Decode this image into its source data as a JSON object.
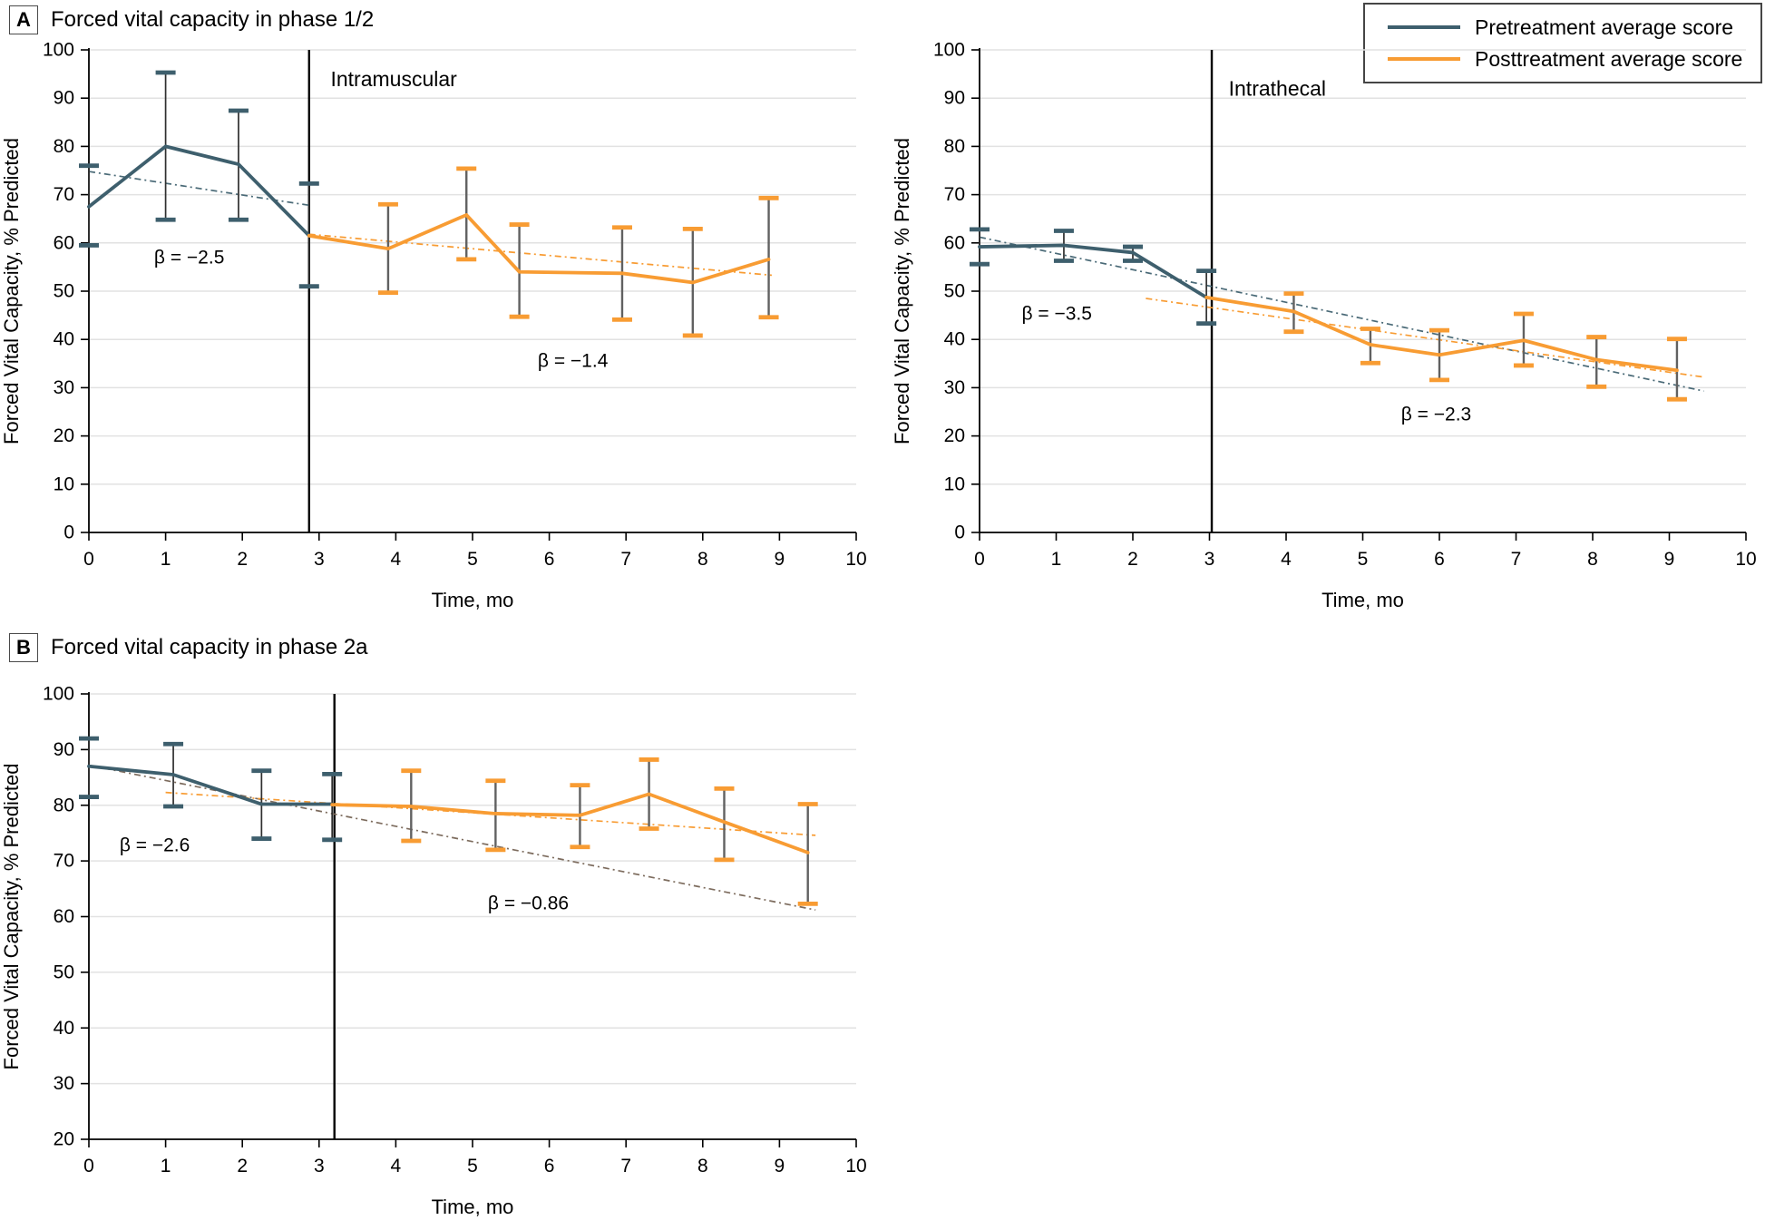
{
  "panels": [
    {
      "letter": "A",
      "title": "Forced vital capacity in phase 1/2"
    },
    {
      "letter": "B",
      "title": "Forced vital capacity in phase 2a"
    }
  ],
  "legend": {
    "items": [
      {
        "label": "Pretreatment average score",
        "color": "#3e5f6d"
      },
      {
        "label": "Posttreatment average score",
        "color": "#f89c33"
      }
    ]
  },
  "colors": {
    "pretreatment": "#3e5f6d",
    "posttreatment": "#f89c33",
    "pre_stem": "#2f2f2f",
    "post_stem": "#616161",
    "grid": "#e2e2e2",
    "axis": "#000000",
    "divider": "#000000"
  },
  "chart_data": [
    {
      "type": "line",
      "region_label": "Intramuscular",
      "region_label_pos": {
        "x": 3.15,
        "y": 94
      },
      "xlabel": "Time, mo",
      "ylabel": "Forced Vital Capacity, % Predicted",
      "xlim": [
        0,
        10
      ],
      "ylim": [
        0,
        100
      ],
      "xticks": [
        0,
        1,
        2,
        3,
        4,
        5,
        6,
        7,
        8,
        9,
        10
      ],
      "yticks": [
        0,
        10,
        20,
        30,
        40,
        50,
        60,
        70,
        80,
        90,
        100
      ],
      "grid": "horizontal",
      "divider_x": 2.87,
      "beta_labels": [
        {
          "text": "β = −2.5",
          "x": 0.85,
          "y": 57
        },
        {
          "text": "β = −1.4",
          "x": 5.85,
          "y": 35.5
        }
      ],
      "series": [
        {
          "name": "Pretreatment average score",
          "color": "#3e5f6d",
          "stem_color": "#2f2f2f",
          "points": [
            {
              "x": 0,
              "y": 67.5,
              "lo": 59.5,
              "hi": 76
            },
            {
              "x": 1,
              "y": 80,
              "lo": 64.8,
              "hi": 95.3
            },
            {
              "x": 1.95,
              "y": 76.3,
              "lo": 64.8,
              "hi": 87.4
            },
            {
              "x": 2.87,
              "y": 61.5,
              "lo": 51,
              "hi": 72.3
            }
          ]
        },
        {
          "name": "Posttreatment average score",
          "color": "#f89c33",
          "stem_color": "#616161",
          "points": [
            {
              "x": 2.87,
              "y": 61.5,
              "lo": null,
              "hi": null
            },
            {
              "x": 3.9,
              "y": 58.8,
              "lo": 49.7,
              "hi": 68
            },
            {
              "x": 4.92,
              "y": 65.8,
              "lo": 56.6,
              "hi": 75.4
            },
            {
              "x": 5.61,
              "y": 54,
              "lo": 44.7,
              "hi": 63.8
            },
            {
              "x": 6.95,
              "y": 53.7,
              "lo": 44.1,
              "hi": 63.2
            },
            {
              "x": 7.87,
              "y": 51.8,
              "lo": 40.8,
              "hi": 62.9
            },
            {
              "x": 8.86,
              "y": 56.6,
              "lo": 44.6,
              "hi": 69.3
            }
          ]
        }
      ],
      "trendlines": [
        {
          "name": "pretreatment-trend",
          "color": "#4a6a77",
          "x1": 0,
          "y1": 74.8,
          "x2": 2.87,
          "y2": 67.8
        },
        {
          "name": "posttreatment-trend",
          "color": "#f89c33",
          "x1": 2.87,
          "y1": 61.8,
          "x2": 8.9,
          "y2": 53.3
        }
      ]
    },
    {
      "type": "line",
      "region_label": "Intrathecal",
      "region_label_pos": {
        "x": 3.25,
        "y": 92
      },
      "xlabel": "Time, mo",
      "ylabel": "Forced Vital Capacity, % Predicted",
      "xlim": [
        0,
        10
      ],
      "ylim": [
        0,
        100
      ],
      "xticks": [
        0,
        1,
        2,
        3,
        4,
        5,
        6,
        7,
        8,
        9,
        10
      ],
      "yticks": [
        0,
        10,
        20,
        30,
        40,
        50,
        60,
        70,
        80,
        90,
        100
      ],
      "grid": "horizontal",
      "divider_x": 3.03,
      "beta_labels": [
        {
          "text": "β = −3.5",
          "x": 0.55,
          "y": 45.3
        },
        {
          "text": "β = −2.3",
          "x": 5.5,
          "y": 24.4
        }
      ],
      "series": [
        {
          "name": "Pretreatment average score",
          "color": "#3e5f6d",
          "stem_color": "#2f2f2f",
          "points": [
            {
              "x": 0,
              "y": 59.2,
              "lo": 55.6,
              "hi": 62.8
            },
            {
              "x": 1.1,
              "y": 59.5,
              "lo": 56.3,
              "hi": 62.5
            },
            {
              "x": 2,
              "y": 58,
              "lo": 56.3,
              "hi": 59.2
            },
            {
              "x": 2.96,
              "y": 48.7,
              "lo": 43.3,
              "hi": 54.2
            }
          ]
        },
        {
          "name": "Posttreatment average score",
          "color": "#f89c33",
          "stem_color": "#616161",
          "points": [
            {
              "x": 2.96,
              "y": 48.7,
              "lo": null,
              "hi": null
            },
            {
              "x": 4.1,
              "y": 45.8,
              "lo": 41.6,
              "hi": 49.5
            },
            {
              "x": 5.1,
              "y": 38.9,
              "lo": 35.1,
              "hi": 42.2
            },
            {
              "x": 6,
              "y": 36.8,
              "lo": 31.6,
              "hi": 41.9
            },
            {
              "x": 7.1,
              "y": 39.8,
              "lo": 34.6,
              "hi": 45.3
            },
            {
              "x": 8.05,
              "y": 35.8,
              "lo": 30.2,
              "hi": 40.5
            },
            {
              "x": 9.1,
              "y": 33.6,
              "lo": 27.6,
              "hi": 40.1
            }
          ]
        }
      ],
      "trendlines": [
        {
          "name": "pretreatment-trend",
          "color": "#4a6a77",
          "x1": 0,
          "y1": 61.2,
          "x2": 9.45,
          "y2": 29.3
        },
        {
          "name": "posttreatment-trend",
          "color": "#f89c33",
          "x1": 2.17,
          "y1": 48.5,
          "x2": 9.45,
          "y2": 32.2
        }
      ]
    },
    {
      "type": "line",
      "region_label": "",
      "region_label_pos": null,
      "xlabel": "Time, mo",
      "ylabel": "Forced Vital Capacity, % Predicted",
      "xlim": [
        0,
        10
      ],
      "ylim": [
        20,
        100
      ],
      "xticks": [
        0,
        1,
        2,
        3,
        4,
        5,
        6,
        7,
        8,
        9,
        10
      ],
      "yticks": [
        20,
        30,
        40,
        50,
        60,
        70,
        80,
        90,
        100
      ],
      "grid": "horizontal",
      "divider_x": 3.2,
      "beta_labels": [
        {
          "text": "β = −2.6",
          "x": 0.4,
          "y": 72.8
        },
        {
          "text": "β = −0.86",
          "x": 5.2,
          "y": 62.4
        }
      ],
      "series": [
        {
          "name": "Pretreatment average score",
          "color": "#3e5f6d",
          "stem_color": "#2f2f2f",
          "points": [
            {
              "x": 0,
              "y": 87,
              "lo": 81.5,
              "hi": 92
            },
            {
              "x": 1.1,
              "y": 85.5,
              "lo": 79.8,
              "hi": 91
            },
            {
              "x": 2.25,
              "y": 80.2,
              "lo": 74,
              "hi": 86.2
            },
            {
              "x": 3.17,
              "y": 80.2,
              "lo": 73.8,
              "hi": 85.6
            }
          ]
        },
        {
          "name": "Posttreatment average score",
          "color": "#f89c33",
          "stem_color": "#616161",
          "points": [
            {
              "x": 3.17,
              "y": 80.1,
              "lo": null,
              "hi": null
            },
            {
              "x": 4.2,
              "y": 79.8,
              "lo": 73.6,
              "hi": 86.2
            },
            {
              "x": 5.3,
              "y": 78.5,
              "lo": 72,
              "hi": 84.4
            },
            {
              "x": 6.4,
              "y": 78.2,
              "lo": 72.5,
              "hi": 83.6
            },
            {
              "x": 7.3,
              "y": 82,
              "lo": 75.8,
              "hi": 88.2
            },
            {
              "x": 8.28,
              "y": 77,
              "lo": 70.2,
              "hi": 83
            },
            {
              "x": 9.37,
              "y": 71.5,
              "lo": 62.3,
              "hi": 80.2
            }
          ]
        }
      ],
      "trendlines": [
        {
          "name": "pretreatment-trend",
          "color": "#7d6c5e",
          "x1": 0,
          "y1": 87.2,
          "x2": 9.47,
          "y2": 61.2
        },
        {
          "name": "posttreatment-trend",
          "color": "#f89c33",
          "x1": 1,
          "y1": 82.3,
          "x2": 9.47,
          "y2": 74.6
        }
      ]
    }
  ]
}
